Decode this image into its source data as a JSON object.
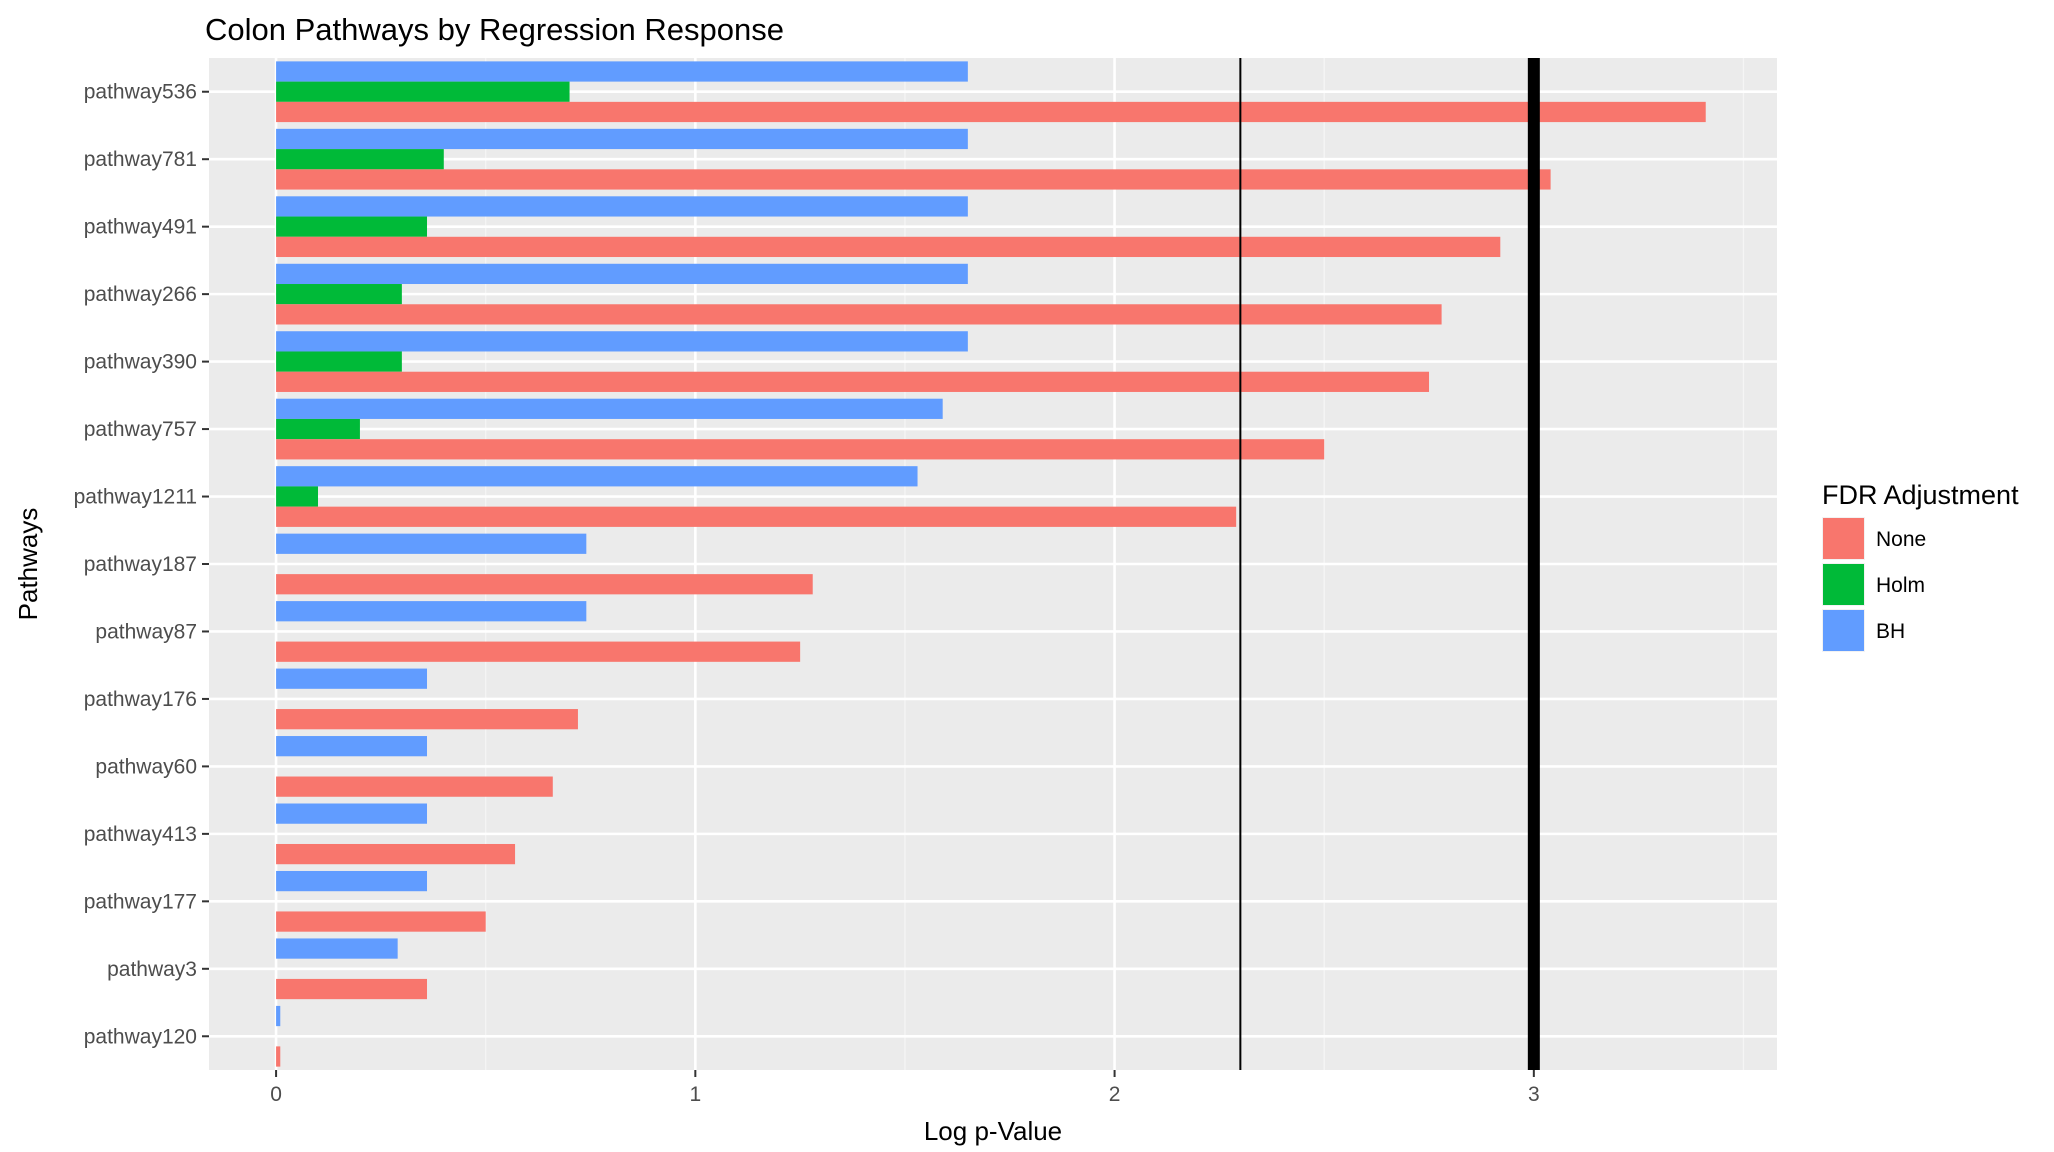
{
  "chart_data": {
    "type": "bar",
    "orientation": "horizontal",
    "title": "Colon Pathways by Regression Response",
    "xlabel": "Log p-Value",
    "ylabel": "Pathways",
    "xlim": [
      -0.16,
      3.58
    ],
    "xticks": [
      0,
      1,
      2,
      3
    ],
    "grid": true,
    "legend": {
      "title": "FDR Adjustment",
      "position": "right"
    },
    "categories": [
      "pathway536",
      "pathway781",
      "pathway491",
      "pathway266",
      "pathway390",
      "pathway757",
      "pathway1211",
      "pathway187",
      "pathway87",
      "pathway176",
      "pathway60",
      "pathway413",
      "pathway177",
      "pathway3",
      "pathway120"
    ],
    "series": [
      {
        "name": "None",
        "color": "#F8766D",
        "values": [
          3.41,
          3.04,
          2.92,
          2.78,
          2.75,
          2.5,
          2.29,
          1.28,
          1.25,
          0.72,
          0.66,
          0.57,
          0.5,
          0.36,
          0.01
        ]
      },
      {
        "name": "Holm",
        "color": "#00BA38",
        "values": [
          0.7,
          0.4,
          0.36,
          0.3,
          0.3,
          0.2,
          0.1,
          null,
          null,
          null,
          null,
          null,
          null,
          null,
          null
        ]
      },
      {
        "name": "BH",
        "color": "#619CFF",
        "values": [
          1.65,
          1.65,
          1.65,
          1.65,
          1.65,
          1.59,
          1.53,
          0.74,
          0.74,
          0.36,
          0.36,
          0.36,
          0.36,
          0.29,
          0.01
        ]
      }
    ],
    "reference_lines": [
      {
        "x": 2.3,
        "style": "thin"
      },
      {
        "x": 3.0,
        "style": "thick"
      }
    ]
  }
}
